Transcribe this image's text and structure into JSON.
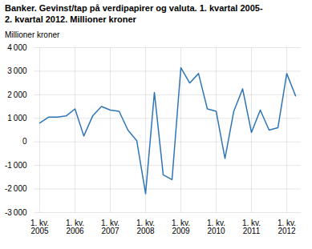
{
  "chart_data": {
    "type": "line",
    "title": "Banker. Gevinst/tap på verdipapirer og valuta. 1. kvartal 2005-\n2. kvartal 2012. Millioner kroner",
    "ylabel": "Millioner kroner",
    "categories": [
      "1. kv.\n2005",
      null,
      null,
      null,
      "1. kv.\n2006",
      null,
      null,
      null,
      "1. kv.\n2007",
      null,
      null,
      null,
      "1. kv.\n2008",
      null,
      null,
      null,
      "1. kv.\n2009",
      null,
      null,
      null,
      "1. kv.\n2010",
      null,
      null,
      null,
      "1. kv.\n2011",
      null,
      null,
      null,
      "1. kv.\n2012",
      null
    ],
    "values": [
      800,
      1050,
      1050,
      1100,
      1400,
      250,
      1100,
      1500,
      1350,
      1300,
      500,
      50,
      -2200,
      2100,
      -1400,
      -1600,
      3150,
      2500,
      2900,
      1400,
      1300,
      -700,
      1300,
      2250,
      400,
      1350,
      500,
      600,
      2900,
      1950
    ],
    "color": "#2e75b6",
    "ylim": [
      -3000,
      4000
    ],
    "yticks": [
      {
        "value": -3000,
        "label": "-3 000"
      },
      {
        "value": -2000,
        "label": "-2 000"
      },
      {
        "value": -1000,
        "label": "-1 000"
      },
      0,
      {
        "value": 1000,
        "label": "1 000"
      },
      {
        "value": 2000,
        "label": "2 000"
      },
      {
        "value": 3000,
        "label": "3 000"
      },
      {
        "value": 4000,
        "label": "4 000"
      }
    ],
    "grid": true
  }
}
